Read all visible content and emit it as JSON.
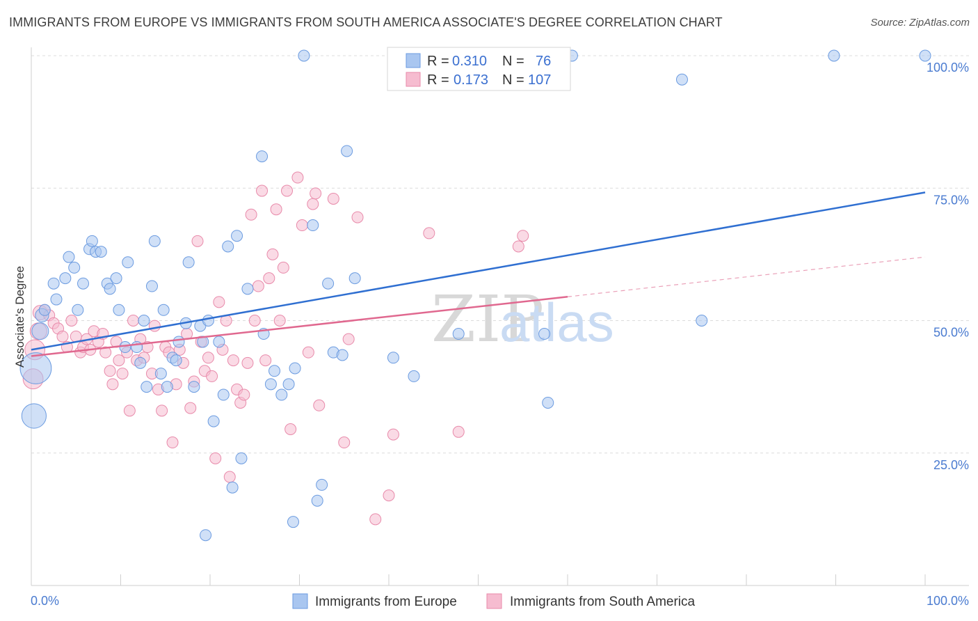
{
  "title": "IMMIGRANTS FROM EUROPE VS IMMIGRANTS FROM SOUTH AMERICA ASSOCIATE'S DEGREE CORRELATION CHART",
  "source": "Source: ZipAtlas.com",
  "watermark": {
    "zip": "ZIP",
    "atlas": "atlas"
  },
  "legend": {
    "rows": [
      {
        "r_label": "R =",
        "r_value": "0.310",
        "n_label": "N =",
        "n_value": "76",
        "color": "#a9c6f0",
        "stroke": "#6b9be0"
      },
      {
        "r_label": "R =",
        "r_value": "0.173",
        "n_label": "N =",
        "n_value": "107",
        "color": "#f6bcd0",
        "stroke": "#e88aaa"
      }
    ]
  },
  "bottom_legend": [
    {
      "label": "Immigrants from Europe",
      "color": "#a9c6f0",
      "stroke": "#6b9be0"
    },
    {
      "label": "Immigrants from South America",
      "color": "#f6bcd0",
      "stroke": "#e88aaa"
    }
  ],
  "chart_data": {
    "type": "scatter",
    "title": "IMMIGRANTS FROM EUROPE VS IMMIGRANTS FROM SOUTH AMERICA ASSOCIATE'S DEGREE CORRELATION CHART",
    "xlabel": "",
    "ylabel": "Associate's Degree",
    "xlim": [
      0,
      100
    ],
    "ylim": [
      0,
      100
    ],
    "x_tick_labels": [
      "0.0%",
      "100.0%"
    ],
    "y_tick_labels": [
      "25.0%",
      "50.0%",
      "75.0%",
      "100.0%"
    ],
    "y_ticks": [
      25,
      50,
      75,
      100
    ],
    "grid": true,
    "legend_position": "top-center",
    "series": [
      {
        "name": "Immigrants from Europe",
        "color": "#6b9be0",
        "fill": "#a9c6f0",
        "trend": {
          "x0": 0,
          "y0": 44.5,
          "x1": 100,
          "y1": 74.2,
          "dashed_from": null
        },
        "points": [
          [
            0.3,
            32,
            2.2
          ],
          [
            0.5,
            41,
            2.8
          ],
          [
            1.0,
            48,
            1.5
          ],
          [
            1.2,
            51,
            1.2
          ],
          [
            1.5,
            52,
            1
          ],
          [
            2.5,
            57,
            1
          ],
          [
            2.8,
            54,
            1
          ],
          [
            3.8,
            58,
            1
          ],
          [
            4.2,
            62,
            1
          ],
          [
            4.8,
            60,
            1
          ],
          [
            5.2,
            52,
            1
          ],
          [
            5.8,
            57,
            1
          ],
          [
            6.5,
            63.5,
            1
          ],
          [
            6.8,
            65,
            1
          ],
          [
            7.2,
            63,
            1
          ],
          [
            7.8,
            63,
            1
          ],
          [
            8.5,
            57,
            1
          ],
          [
            8.8,
            56,
            1
          ],
          [
            9.5,
            58,
            1
          ],
          [
            9.8,
            52,
            1
          ],
          [
            10.5,
            45,
            1
          ],
          [
            10.8,
            61,
            1
          ],
          [
            11.8,
            45,
            1
          ],
          [
            12.2,
            42,
            1
          ],
          [
            12.6,
            50,
            1
          ],
          [
            12.9,
            37.5,
            1
          ],
          [
            13.5,
            56.5,
            1
          ],
          [
            13.8,
            65,
            1
          ],
          [
            14.5,
            40,
            1
          ],
          [
            14.8,
            52,
            1
          ],
          [
            15.2,
            37.5,
            1
          ],
          [
            15.8,
            43,
            1
          ],
          [
            16.2,
            42.5,
            1
          ],
          [
            16.5,
            46,
            1
          ],
          [
            17.3,
            49.5,
            1
          ],
          [
            17.6,
            61,
            1
          ],
          [
            18.2,
            37.5,
            1
          ],
          [
            18.9,
            49,
            1
          ],
          [
            19.2,
            46,
            1
          ],
          [
            19.5,
            9.5,
            1
          ],
          [
            19.8,
            50,
            1
          ],
          [
            20.4,
            31,
            1
          ],
          [
            21.0,
            46,
            1
          ],
          [
            21.5,
            36,
            1
          ],
          [
            22.0,
            64,
            1
          ],
          [
            22.5,
            18.5,
            1
          ],
          [
            23.0,
            66,
            1
          ],
          [
            23.5,
            24,
            1
          ],
          [
            24.2,
            56,
            1
          ],
          [
            25.8,
            81,
            1
          ],
          [
            26.0,
            47.5,
            1
          ],
          [
            26.8,
            38,
            1
          ],
          [
            27.2,
            40.5,
            1
          ],
          [
            28.0,
            36,
            1
          ],
          [
            28.8,
            38,
            1
          ],
          [
            29.3,
            12,
            1
          ],
          [
            29.5,
            41,
            1
          ],
          [
            30.5,
            100,
            1
          ],
          [
            31.5,
            68,
            1
          ],
          [
            32.0,
            16,
            1
          ],
          [
            32.5,
            19,
            1
          ],
          [
            33.2,
            57,
            1
          ],
          [
            33.8,
            44,
            1
          ],
          [
            34.8,
            43.5,
            1
          ],
          [
            35.3,
            82,
            1
          ],
          [
            36.2,
            58,
            1
          ],
          [
            40.5,
            43,
            1
          ],
          [
            42.8,
            39.5,
            1
          ],
          [
            47.8,
            47.5,
            1
          ],
          [
            57.4,
            47.5,
            1
          ],
          [
            57.8,
            34.5,
            1
          ],
          [
            60.5,
            100,
            1
          ],
          [
            72.8,
            95.5,
            1
          ],
          [
            75.0,
            50,
            1
          ],
          [
            89.8,
            100,
            1
          ],
          [
            100.0,
            100,
            1
          ]
        ]
      },
      {
        "name": "Immigrants from South America",
        "color": "#e88aaa",
        "fill": "#f6bcd0",
        "trend": {
          "x0": 0,
          "y0": 43.3,
          "x1": 60,
          "y1": 54.5,
          "dashed_to_x": 100,
          "dashed_to_y": 62
        },
        "points": [
          [
            0.2,
            39,
            1.8
          ],
          [
            0.4,
            44.5,
            1.8
          ],
          [
            0.8,
            48,
            1.5
          ],
          [
            1.0,
            51.5,
            1.3
          ],
          [
            1.5,
            52,
            1
          ],
          [
            2.0,
            51,
            1
          ],
          [
            2.5,
            49.5,
            1
          ],
          [
            3.0,
            48.5,
            1
          ],
          [
            3.5,
            47,
            1
          ],
          [
            4.0,
            45,
            1
          ],
          [
            4.5,
            50,
            1
          ],
          [
            5.0,
            47,
            1
          ],
          [
            5.5,
            44,
            1
          ],
          [
            5.8,
            45,
            1
          ],
          [
            6.2,
            46.5,
            1
          ],
          [
            6.6,
            44.5,
            1
          ],
          [
            7.0,
            48,
            1
          ],
          [
            7.5,
            46,
            1
          ],
          [
            8.0,
            47.5,
            1
          ],
          [
            8.3,
            44,
            1
          ],
          [
            8.8,
            40.5,
            1
          ],
          [
            9.1,
            38,
            1
          ],
          [
            9.5,
            46,
            1
          ],
          [
            9.8,
            42.5,
            1
          ],
          [
            10.2,
            40,
            1
          ],
          [
            10.7,
            44,
            1
          ],
          [
            11.0,
            33,
            1
          ],
          [
            11.4,
            50,
            1
          ],
          [
            11.8,
            42.5,
            1
          ],
          [
            12.2,
            46.5,
            1
          ],
          [
            12.6,
            43,
            1
          ],
          [
            13.0,
            45,
            1
          ],
          [
            13.5,
            40,
            1
          ],
          [
            13.8,
            49,
            1
          ],
          [
            14.2,
            37,
            1
          ],
          [
            14.6,
            33,
            1
          ],
          [
            15.0,
            45,
            1
          ],
          [
            15.4,
            44,
            1
          ],
          [
            15.8,
            27,
            1
          ],
          [
            16.2,
            38,
            1
          ],
          [
            16.6,
            44.5,
            1
          ],
          [
            17.0,
            42,
            1
          ],
          [
            17.4,
            47.5,
            1
          ],
          [
            17.8,
            33.5,
            1
          ],
          [
            18.2,
            38.5,
            1
          ],
          [
            18.6,
            65,
            1
          ],
          [
            19.0,
            46,
            1
          ],
          [
            19.4,
            40.5,
            1
          ],
          [
            19.8,
            43,
            1
          ],
          [
            20.2,
            39.5,
            1
          ],
          [
            20.6,
            24,
            1
          ],
          [
            21.0,
            53.5,
            1
          ],
          [
            21.4,
            44.5,
            1
          ],
          [
            21.8,
            50,
            1
          ],
          [
            22.2,
            20.5,
            1
          ],
          [
            22.6,
            42.5,
            1
          ],
          [
            23.0,
            37,
            1
          ],
          [
            23.4,
            34.5,
            1
          ],
          [
            23.8,
            36,
            1
          ],
          [
            24.2,
            42,
            1
          ],
          [
            24.6,
            70,
            1
          ],
          [
            25.0,
            50,
            1
          ],
          [
            25.4,
            56.5,
            1
          ],
          [
            25.8,
            74.5,
            1
          ],
          [
            26.2,
            42.5,
            1
          ],
          [
            26.6,
            58,
            1
          ],
          [
            27.0,
            62.5,
            1
          ],
          [
            27.4,
            71,
            1
          ],
          [
            27.8,
            50,
            1
          ],
          [
            28.2,
            60,
            1
          ],
          [
            28.6,
            74.5,
            1
          ],
          [
            29.0,
            29.5,
            1
          ],
          [
            29.8,
            77,
            1
          ],
          [
            30.3,
            68,
            1
          ],
          [
            31.0,
            44,
            1
          ],
          [
            31.5,
            72,
            1
          ],
          [
            31.8,
            74,
            1
          ],
          [
            32.2,
            34,
            1
          ],
          [
            33.8,
            73,
            1
          ],
          [
            35.0,
            27,
            1
          ],
          [
            35.5,
            46.5,
            1
          ],
          [
            36.5,
            69.5,
            1
          ],
          [
            38.5,
            12.5,
            1
          ],
          [
            40.0,
            17,
            1
          ],
          [
            40.5,
            28.5,
            1
          ],
          [
            44.5,
            66.5,
            1
          ],
          [
            47.8,
            29,
            1
          ],
          [
            54.5,
            64,
            1
          ],
          [
            55.0,
            66,
            1
          ]
        ]
      }
    ]
  }
}
